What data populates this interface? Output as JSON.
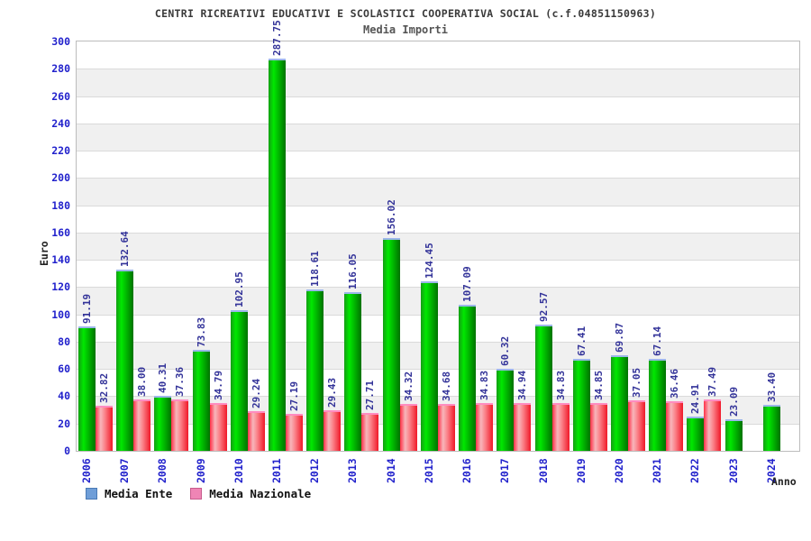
{
  "header": {
    "title": "CENTRI RICREATIVI EDUCATIVI E SCOLASTICI COOPERATIVA SOCIAL (c.f.04851150963)",
    "subtitle": "Media Importi"
  },
  "axes": {
    "y_label": "Euro",
    "x_label": "Anno"
  },
  "legend": {
    "items": [
      {
        "label": "Media Ente",
        "swatch_color": "#6f9ed8",
        "swatch_border": "#4a7ab5"
      },
      {
        "label": "Media Nazionale",
        "swatch_color": "#ef85b5",
        "swatch_border": "#c75d8d"
      }
    ]
  },
  "colors": {
    "tick_label": "#2222cc",
    "value_label": "#333399",
    "band_gray": "#f0f0f0",
    "gridline": "#dadada",
    "plot_border": "#bcbcbc"
  },
  "chart_data": {
    "type": "bar",
    "title": "CENTRI RICREATIVI EDUCATIVI E SCOLASTICI COOPERATIVA SOCIAL (c.f.04851150963)",
    "subtitle": "Media Importi",
    "xlabel": "Anno",
    "ylabel": "Euro",
    "ylim": [
      0,
      300
    ],
    "ytick_step": 20,
    "yticks": [
      0,
      20,
      40,
      60,
      80,
      100,
      120,
      140,
      160,
      180,
      200,
      220,
      240,
      260,
      280,
      300
    ],
    "grid": "alternating-horizontal-bands",
    "legend_position": "bottom-left",
    "categories": [
      "2006",
      "2007",
      "2008",
      "2009",
      "2010",
      "2011",
      "2012",
      "2013",
      "2014",
      "2015",
      "2016",
      "2017",
      "2018",
      "2019",
      "2020",
      "2021",
      "2022",
      "2023",
      "2024"
    ],
    "series": [
      {
        "name": "Media Ente",
        "gradient": [
          "#149e14",
          "#00e800",
          "#00be00",
          "#007200"
        ],
        "cap_color": "#9cb6ea",
        "values": [
          91.19,
          132.64,
          40.31,
          73.83,
          102.95,
          287.75,
          118.61,
          116.05,
          156.02,
          124.45,
          107.09,
          60.32,
          92.57,
          67.41,
          69.87,
          67.14,
          24.91,
          23.09,
          33.4
        ]
      },
      {
        "name": "Media Nazionale",
        "gradient": [
          "#ff3048",
          "#f7b6bb",
          "#fb8289",
          "#f01828"
        ],
        "cap_color": "#ff8cc0",
        "values": [
          32.82,
          38.0,
          37.36,
          34.79,
          29.24,
          27.19,
          29.43,
          27.71,
          34.32,
          34.68,
          34.83,
          34.94,
          34.83,
          34.85,
          37.05,
          36.46,
          37.49,
          null,
          null
        ]
      }
    ]
  }
}
